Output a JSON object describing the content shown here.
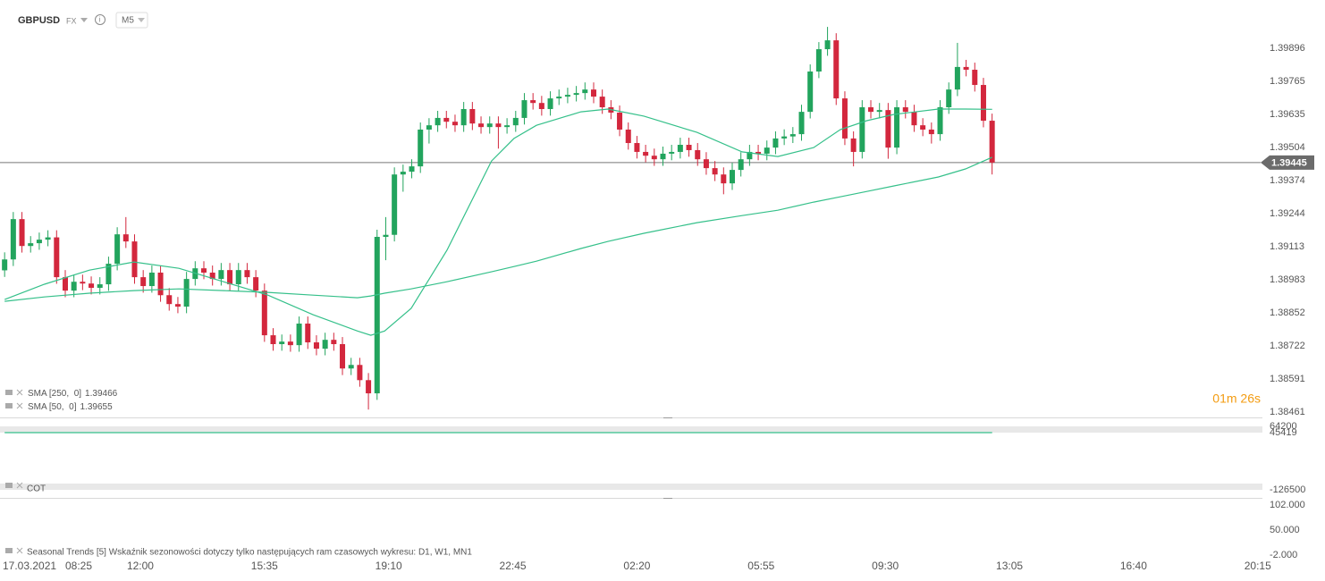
{
  "header": {
    "symbol": "GBPUSD",
    "market": "FX",
    "interval": "M5"
  },
  "chart_data": [
    {
      "type": "candlestick",
      "date_label": "17.03.2021",
      "up_color": "#22a45d",
      "down_color": "#d3273d",
      "x": [
        485,
        500,
        515,
        530,
        545,
        560,
        575,
        590,
        605,
        620,
        635,
        650,
        665,
        680,
        695,
        710,
        725,
        740,
        755,
        770,
        785,
        800,
        815,
        830,
        845,
        860,
        875,
        890,
        905,
        920,
        935,
        950,
        965,
        980,
        995,
        1010,
        1025,
        1040,
        1055,
        1070,
        1085,
        1100,
        1115,
        1130,
        1145,
        1160,
        1175,
        1190,
        1205,
        1220,
        1235,
        1250,
        1265,
        1280,
        1295,
        1310,
        1325,
        1340,
        1355,
        1370,
        1385,
        1400,
        1415,
        1430,
        1445,
        1460,
        1475,
        1490,
        1505,
        1520,
        1535,
        1550,
        1565,
        1580,
        1595,
        1610,
        1625,
        1640,
        1655,
        1670,
        1685,
        1700,
        1715,
        1730,
        1745,
        1760,
        1775,
        1790,
        1805,
        1820,
        1835,
        1850,
        1865,
        1880,
        1895,
        1910,
        1925,
        1940,
        1955,
        1970,
        1985,
        2000,
        2015,
        2030,
        2045,
        2060,
        2075,
        2090,
        2105,
        2120,
        2135,
        2150,
        2165,
        2180,
        2195
      ],
      "open": [
        1.3902,
        1.39063,
        1.39222,
        1.39116,
        1.39127,
        1.39141,
        1.3915,
        1.38993,
        1.3894,
        1.38975,
        1.38968,
        1.38951,
        1.38965,
        1.39046,
        1.39162,
        1.39134,
        1.38993,
        1.38958,
        1.39011,
        1.38922,
        1.38887,
        1.38877,
        1.38986,
        1.39028,
        1.39011,
        1.38986,
        1.39021,
        1.38965,
        1.39021,
        1.38993,
        1.3894,
        1.38764,
        1.38729,
        1.38739,
        1.38725,
        1.3881,
        1.38736,
        1.38711,
        1.38746,
        1.38729,
        1.38633,
        1.38647,
        1.38587,
        1.38535,
        1.39152,
        1.3916,
        1.39398,
        1.39409,
        1.3943,
        1.39575,
        1.39592,
        1.39621,
        1.39606,
        1.39592,
        1.39656,
        1.39599,
        1.39585,
        1.39599,
        1.39585,
        1.39592,
        1.39621,
        1.39691,
        1.3968,
        1.39656,
        1.39698,
        1.39705,
        1.39712,
        1.39719,
        1.39733,
        1.39705,
        1.39663,
        1.39642,
        1.39575,
        1.39522,
        1.39487,
        1.39472,
        1.39458,
        1.3948,
        1.39487,
        1.39515,
        1.39494,
        1.39458,
        1.39423,
        1.39398,
        1.39363,
        1.39416,
        1.39458,
        1.39487,
        1.3948,
        1.39504,
        1.3954,
        1.39548,
        1.39557,
        1.39645,
        1.39804,
        1.39892,
        1.39927,
        1.39698,
        1.3954,
        1.39487,
        1.39663,
        1.39645,
        1.39652,
        1.39504,
        1.39663,
        1.39645,
        1.39592,
        1.39575,
        1.39557,
        1.39663,
        1.39733,
        1.39822,
        1.39811,
        1.39751,
        1.3961
      ],
      "high": [
        1.39091,
        1.3925,
        1.3925,
        1.39155,
        1.39169,
        1.39178,
        1.39178,
        1.39021,
        1.39003,
        1.39003,
        1.38996,
        1.38993,
        1.39074,
        1.3919,
        1.3923,
        1.39162,
        1.39021,
        1.39039,
        1.39039,
        1.3895,
        1.38915,
        1.39014,
        1.39056,
        1.39056,
        1.39039,
        1.39049,
        1.39049,
        1.39049,
        1.39049,
        1.39021,
        1.38968,
        1.38792,
        1.38767,
        1.38767,
        1.38838,
        1.38838,
        1.38764,
        1.38774,
        1.38774,
        1.38757,
        1.38675,
        1.38675,
        1.38615,
        1.3918,
        1.3923,
        1.39426,
        1.39437,
        1.39458,
        1.39603,
        1.3962,
        1.39649,
        1.39649,
        1.39634,
        1.39684,
        1.39684,
        1.39627,
        1.39627,
        1.39627,
        1.3962,
        1.39649,
        1.39719,
        1.39719,
        1.39708,
        1.39726,
        1.39733,
        1.3974,
        1.39747,
        1.39761,
        1.39761,
        1.39733,
        1.39691,
        1.3967,
        1.39603,
        1.3955,
        1.39515,
        1.395,
        1.39508,
        1.39515,
        1.39543,
        1.39543,
        1.39522,
        1.39486,
        1.39451,
        1.39426,
        1.39444,
        1.39486,
        1.39515,
        1.39515,
        1.39532,
        1.39568,
        1.39576,
        1.39585,
        1.39673,
        1.39832,
        1.3992,
        1.3998,
        1.39955,
        1.39726,
        1.39568,
        1.39691,
        1.39691,
        1.3968,
        1.3968,
        1.39691,
        1.39691,
        1.39673,
        1.3962,
        1.39603,
        1.39691,
        1.39761,
        1.39917,
        1.3985,
        1.39839,
        1.39779,
        1.39638
      ],
      "low": [
        1.38994,
        1.39037,
        1.3909,
        1.3909,
        1.39101,
        1.39115,
        1.38967,
        1.38914,
        1.38914,
        1.38942,
        1.38925,
        1.38925,
        1.38939,
        1.3902,
        1.39108,
        1.38967,
        1.38932,
        1.38932,
        1.38896,
        1.38861,
        1.38851,
        1.38851,
        1.3896,
        1.38985,
        1.3896,
        1.3896,
        1.38939,
        1.38939,
        1.38967,
        1.38914,
        1.38738,
        1.38703,
        1.38703,
        1.38699,
        1.38699,
        1.3871,
        1.38685,
        1.38685,
        1.38703,
        1.38607,
        1.38607,
        1.38561,
        1.38471,
        1.38509,
        1.3906,
        1.39134,
        1.3933,
        1.39383,
        1.39404,
        1.3952,
        1.39566,
        1.3958,
        1.39566,
        1.39566,
        1.39573,
        1.39559,
        1.39559,
        1.395,
        1.39559,
        1.39566,
        1.39595,
        1.39654,
        1.3963,
        1.3963,
        1.39672,
        1.39679,
        1.39686,
        1.39693,
        1.39679,
        1.39637,
        1.39616,
        1.39549,
        1.39496,
        1.39461,
        1.39446,
        1.39432,
        1.39432,
        1.39454,
        1.39461,
        1.39468,
        1.39432,
        1.39397,
        1.39372,
        1.3932,
        1.39337,
        1.3939,
        1.39432,
        1.39454,
        1.39454,
        1.39478,
        1.39514,
        1.39522,
        1.39531,
        1.39619,
        1.39778,
        1.39866,
        1.39672,
        1.39514,
        1.3943,
        1.39461,
        1.39619,
        1.39619,
        1.3946,
        1.39478,
        1.39619,
        1.39566,
        1.39549,
        1.3952,
        1.39531,
        1.39637,
        1.39707,
        1.39785,
        1.39725,
        1.39584,
        1.39398
      ],
      "close": [
        1.39063,
        1.39222,
        1.39116,
        1.39127,
        1.39141,
        1.3915,
        1.38993,
        1.3894,
        1.38975,
        1.38968,
        1.38951,
        1.38965,
        1.39046,
        1.39162,
        1.39134,
        1.38993,
        1.38958,
        1.39011,
        1.38922,
        1.38887,
        1.38877,
        1.38986,
        1.39028,
        1.39011,
        1.38986,
        1.39021,
        1.38965,
        1.39021,
        1.38993,
        1.3894,
        1.38764,
        1.38729,
        1.38739,
        1.38725,
        1.3881,
        1.38736,
        1.38711,
        1.38746,
        1.38729,
        1.38633,
        1.38647,
        1.38587,
        1.38535,
        1.39152,
        1.3916,
        1.39398,
        1.39409,
        1.3943,
        1.39575,
        1.39592,
        1.39621,
        1.39606,
        1.39592,
        1.39656,
        1.39599,
        1.39585,
        1.39599,
        1.39585,
        1.39592,
        1.39621,
        1.39691,
        1.3968,
        1.39656,
        1.39698,
        1.39705,
        1.39712,
        1.39719,
        1.39733,
        1.39705,
        1.39663,
        1.39642,
        1.39575,
        1.39522,
        1.39487,
        1.39472,
        1.39458,
        1.3948,
        1.39487,
        1.39515,
        1.39494,
        1.39458,
        1.39423,
        1.39398,
        1.39363,
        1.39416,
        1.39458,
        1.39487,
        1.3948,
        1.39504,
        1.3954,
        1.39548,
        1.39557,
        1.39645,
        1.39804,
        1.39892,
        1.39927,
        1.39698,
        1.3954,
        1.39487,
        1.39663,
        1.39645,
        1.39652,
        1.39504,
        1.39663,
        1.39645,
        1.39592,
        1.39575,
        1.39557,
        1.39663,
        1.39733,
        1.39822,
        1.39811,
        1.39751,
        1.3961,
        1.39445
      ],
      "series": [
        {
          "name": "SMA [250,  0]",
          "color": "#35c08a",
          "x": [
            485,
            554,
            632,
            709,
            787,
            864,
            941,
            1019,
            1096,
            1119,
            1143,
            1189,
            1251,
            1328,
            1367,
            1406,
            1483,
            1530,
            1592,
            1684,
            1762,
            1824,
            1886,
            1932,
            1978,
            2025,
            2102,
            2149,
            2195
          ],
          "values": [
            1.38898,
            1.38915,
            1.3893,
            1.3894,
            1.38947,
            1.3894,
            1.38933,
            1.38922,
            1.38912,
            1.38919,
            1.3893,
            1.38947,
            1.38975,
            1.39014,
            1.39035,
            1.39056,
            1.39106,
            1.39134,
            1.39166,
            1.39208,
            1.39236,
            1.39257,
            1.39289,
            1.3931,
            1.39331,
            1.39353,
            1.39388,
            1.3942,
            1.39466
          ]
        },
        {
          "name": "SMA [50,  0]",
          "color": "#35c08a",
          "x": [
            485,
            554,
            632,
            709,
            787,
            864,
            941,
            1019,
            1096,
            1119,
            1143,
            1189,
            1251,
            1328,
            1367,
            1406,
            1483,
            1530,
            1592,
            1684,
            1762,
            1824,
            1886,
            1932,
            1978,
            2025,
            2102,
            2149,
            2195
          ],
          "values": [
            1.38905,
            1.38965,
            1.39021,
            1.39053,
            1.39028,
            1.38975,
            1.38922,
            1.38845,
            1.38781,
            1.38764,
            1.38781,
            1.3887,
            1.39099,
            1.39451,
            1.3954,
            1.39592,
            1.39645,
            1.39656,
            1.39628,
            1.39564,
            1.39487,
            1.39469,
            1.39504,
            1.39575,
            1.3961,
            1.39635,
            1.39656,
            1.39656,
            1.39655
          ]
        }
      ],
      "last_price": 1.39445,
      "countdown": "01m 26s",
      "xlim": [
        477,
        2660
      ],
      "xticks": [
        {
          "value": 505,
          "label": "08:25"
        },
        {
          "value": 720,
          "label": "12:00"
        },
        {
          "value": 935,
          "label": "15:35"
        },
        {
          "value": 1150,
          "label": "19:10"
        },
        {
          "value": 1365,
          "label": "22:45"
        },
        {
          "value": 1580,
          "label": "02:20"
        },
        {
          "value": 1795,
          "label": "05:55"
        },
        {
          "value": 2010,
          "label": "09:30"
        },
        {
          "value": 2225,
          "label": "13:05"
        },
        {
          "value": 2440,
          "label": "16:40"
        },
        {
          "value": 2655,
          "label": "20:15"
        }
      ],
      "ylim": [
        1.3844,
        1.40086
      ],
      "yticks": [
        1.39896,
        1.39765,
        1.39635,
        1.39504,
        1.39374,
        1.39244,
        1.39113,
        1.38983,
        1.38852,
        1.38722,
        1.38591,
        1.38461
      ]
    },
    {
      "type": "line",
      "title": "COT",
      "series": [
        {
          "color": "#35c08a",
          "x": [
            485,
            2195
          ],
          "values": [
            45419,
            45419
          ]
        }
      ],
      "ylim": [
        -126500,
        64200
      ],
      "yticks": [
        64200,
        45419,
        -126500
      ]
    },
    {
      "type": "line",
      "title": "Seasonal Trends [5] Wskaźnik sezonowości dotyczy tylko następujących ram czasowych wykresu: D1, W1, MN1",
      "ylim": [
        -2,
        102
      ],
      "yticks": [
        {
          "value": 102,
          "label": "102.000"
        },
        {
          "value": 50,
          "label": "50.000"
        },
        {
          "value": -2,
          "label": "-2.000"
        }
      ]
    }
  ]
}
